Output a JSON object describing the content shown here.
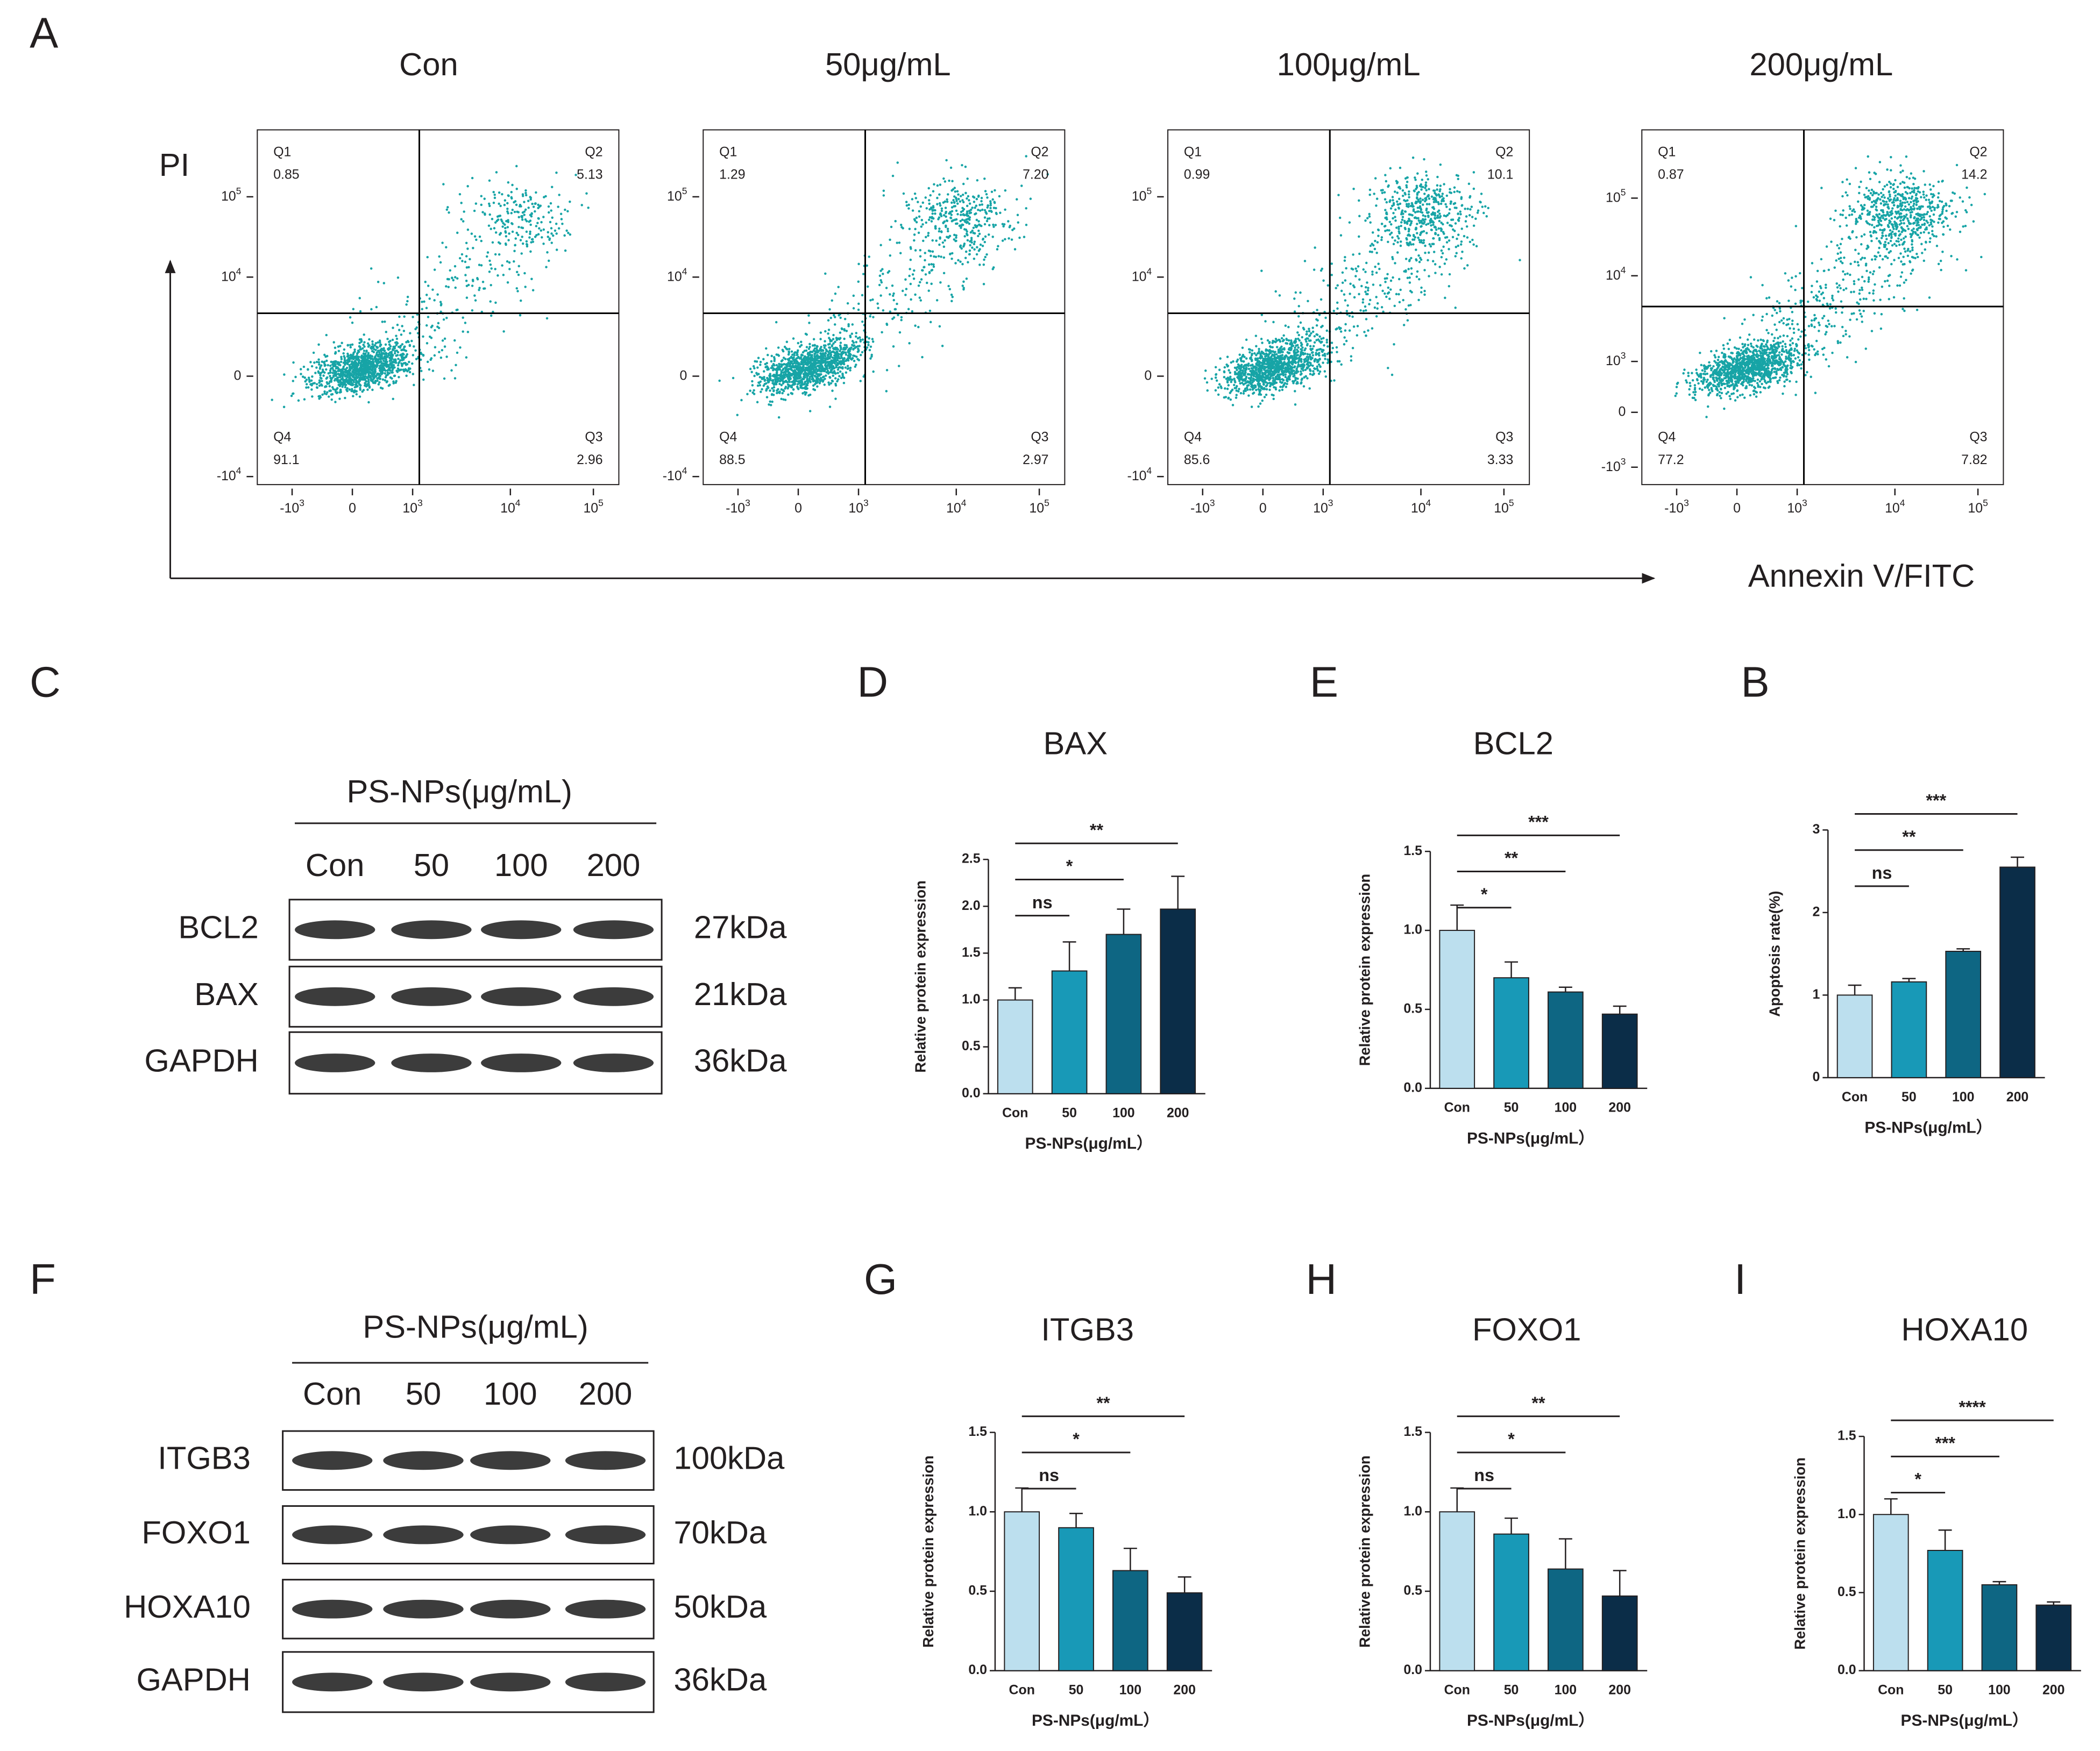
{
  "flow_cytometry": {
    "panel": "A",
    "y_label": "PI",
    "x_label": "Annexin V/FITC",
    "xticks": [
      {
        "text": "-10",
        "sup": "3"
      },
      {
        "text": "0"
      },
      {
        "text": "10",
        "sup": "3"
      },
      {
        "text": "10",
        "sup": "4"
      },
      {
        "text": "10",
        "sup": "5"
      }
    ],
    "plots": [
      {
        "title": "Con",
        "yticks": [
          {
            "text": "10",
            "sup": "5"
          },
          {
            "text": "10",
            "sup": "4"
          },
          {
            "text": "0"
          },
          {
            "text": "-10",
            "sup": "4"
          }
        ],
        "quadrants": [
          {
            "name": "Q1",
            "value": "0.85"
          },
          {
            "name": "Q2",
            "value": "5.13"
          },
          {
            "name": "Q3",
            "value": "2.96"
          },
          {
            "name": "Q4",
            "value": "91.1"
          }
        ]
      },
      {
        "title": "50μg/mL",
        "yticks": [
          {
            "text": "10",
            "sup": "5"
          },
          {
            "text": "10",
            "sup": "4"
          },
          {
            "text": "0"
          },
          {
            "text": "-10",
            "sup": "4"
          }
        ],
        "quadrants": [
          {
            "name": "Q1",
            "value": "1.29"
          },
          {
            "name": "Q2",
            "value": "7.20"
          },
          {
            "name": "Q3",
            "value": "2.97"
          },
          {
            "name": "Q4",
            "value": "88.5"
          }
        ]
      },
      {
        "title": "100μg/mL",
        "yticks": [
          {
            "text": "10",
            "sup": "5"
          },
          {
            "text": "10",
            "sup": "4"
          },
          {
            "text": "0"
          },
          {
            "text": "-10",
            "sup": "4"
          }
        ],
        "quadrants": [
          {
            "name": "Q1",
            "value": "0.99"
          },
          {
            "name": "Q2",
            "value": "10.1"
          },
          {
            "name": "Q3",
            "value": "3.33"
          },
          {
            "name": "Q4",
            "value": "85.6"
          }
        ]
      },
      {
        "title": "200μg/mL",
        "yticks": [
          {
            "text": "10",
            "sup": "5"
          },
          {
            "text": "10",
            "sup": "4"
          },
          {
            "text": "10",
            "sup": "3"
          },
          {
            "text": "0"
          },
          {
            "text": "-10",
            "sup": "3"
          }
        ],
        "quadrants": [
          {
            "name": "Q1",
            "value": "0.87"
          },
          {
            "name": "Q2",
            "value": "14.2"
          },
          {
            "name": "Q3",
            "value": "7.82"
          },
          {
            "name": "Q4",
            "value": "77.2"
          }
        ]
      }
    ]
  },
  "western_blots": [
    {
      "panel": "C",
      "header": "PS-NPs(μg/mL)",
      "lanes": [
        "Con",
        "50",
        "100",
        "200"
      ],
      "rows": [
        {
          "protein": "BCL2",
          "size": "27kDa"
        },
        {
          "protein": "BAX",
          "size": "21kDa"
        },
        {
          "protein": "GAPDH",
          "size": "36kDa"
        }
      ]
    },
    {
      "panel": "F",
      "header": "PS-NPs(μg/mL)",
      "lanes": [
        "Con",
        "50",
        "100",
        "200"
      ],
      "rows": [
        {
          "protein": "ITGB3",
          "size": "100kDa"
        },
        {
          "protein": "FOXO1",
          "size": "70kDa"
        },
        {
          "protein": "HOXA10",
          "size": "50kDa"
        },
        {
          "protein": "GAPDH",
          "size": "36kDa"
        }
      ]
    }
  ],
  "chart_data": [
    {
      "type": "bar",
      "panel": "D",
      "title": "BAX",
      "y_label": "Relative protein expression",
      "x_label": "PS-NPs(μg/mL）",
      "categories": [
        "Con",
        "50",
        "100",
        "200"
      ],
      "values": [
        1.0,
        1.31,
        1.7,
        1.97
      ],
      "errors": [
        0.13,
        0.31,
        0.27,
        0.35
      ],
      "colors": [
        "#bcdfee",
        "#1899b7",
        "#0e6683",
        "#0b2d48"
      ],
      "ylim": [
        0,
        2.5
      ],
      "yticks": [
        {
          "value": 0,
          "label": "0.0"
        },
        {
          "value": 0.5,
          "label": "0.5"
        },
        {
          "value": 1,
          "label": "1.0"
        },
        {
          "value": 1.5,
          "label": "1.5"
        },
        {
          "value": 2,
          "label": "2.0"
        },
        {
          "value": 2.5,
          "label": "2.5"
        }
      ],
      "significance": [
        {
          "between": [
            "Con",
            "50"
          ],
          "label": "ns"
        },
        {
          "between": [
            "Con",
            "100"
          ],
          "label": "*"
        },
        {
          "between": [
            "Con",
            "200"
          ],
          "label": "**"
        }
      ]
    },
    {
      "type": "bar",
      "panel": "E",
      "title": "BCL2",
      "y_label": "Relative protein expression",
      "x_label": "PS-NPs(μg/mL）",
      "categories": [
        "Con",
        "50",
        "100",
        "200"
      ],
      "values": [
        1.0,
        0.7,
        0.61,
        0.47
      ],
      "errors": [
        0.16,
        0.1,
        0.03,
        0.05
      ],
      "colors": [
        "#bcdfee",
        "#1899b7",
        "#0e6683",
        "#0b2d48"
      ],
      "ylim": [
        0,
        1.5
      ],
      "yticks": [
        {
          "value": 0,
          "label": "0.0"
        },
        {
          "value": 0.5,
          "label": "0.5"
        },
        {
          "value": 1,
          "label": "1.0"
        },
        {
          "value": 1.5,
          "label": "1.5"
        }
      ],
      "significance": [
        {
          "between": [
            "Con",
            "50"
          ],
          "label": "*"
        },
        {
          "between": [
            "Con",
            "100"
          ],
          "label": "**"
        },
        {
          "between": [
            "Con",
            "200"
          ],
          "label": "***"
        }
      ]
    },
    {
      "type": "bar",
      "panel": "B",
      "y_label": "Apoptosis rate(%)",
      "x_label": "PS-NPs(μg/mL）",
      "categories": [
        "Con",
        "50",
        "100",
        "200"
      ],
      "values": [
        1.0,
        1.16,
        1.53,
        2.55
      ],
      "errors": [
        0.12,
        0.04,
        0.03,
        0.12
      ],
      "colors": [
        "#bcdfee",
        "#1899b7",
        "#0e6683",
        "#0b2d48"
      ],
      "ylim": [
        0,
        3
      ],
      "yticks": [
        0,
        1,
        2,
        3
      ],
      "significance": [
        {
          "between": [
            "Con",
            "50"
          ],
          "label": "ns"
        },
        {
          "between": [
            "Con",
            "100"
          ],
          "label": "**"
        },
        {
          "between": [
            "Con",
            "200"
          ],
          "label": "***"
        }
      ]
    },
    {
      "type": "bar",
      "panel": "G",
      "title": "ITGB3",
      "y_label": "Relative protein expression",
      "x_label": "PS-NPs(μg/mL）",
      "categories": [
        "Con",
        "50",
        "100",
        "200"
      ],
      "values": [
        1.0,
        0.9,
        0.63,
        0.49
      ],
      "errors": [
        0.15,
        0.09,
        0.14,
        0.1
      ],
      "colors": [
        "#bcdfee",
        "#1899b7",
        "#0e6683",
        "#0b2d48"
      ],
      "ylim": [
        0,
        1.5
      ],
      "yticks": [
        {
          "value": 0,
          "label": "0.0"
        },
        {
          "value": 0.5,
          "label": "0.5"
        },
        {
          "value": 1,
          "label": "1.0"
        },
        {
          "value": 1.5,
          "label": "1.5"
        }
      ],
      "significance": [
        {
          "between": [
            "Con",
            "50"
          ],
          "label": "ns"
        },
        {
          "between": [
            "Con",
            "100"
          ],
          "label": "*"
        },
        {
          "between": [
            "Con",
            "200"
          ],
          "label": "**"
        }
      ]
    },
    {
      "type": "bar",
      "panel": "H",
      "title": "FOXO1",
      "y_label": "Relative protein expression",
      "x_label": "PS-NPs(μg/mL）",
      "categories": [
        "Con",
        "50",
        "100",
        "200"
      ],
      "values": [
        1.0,
        0.86,
        0.64,
        0.47
      ],
      "errors": [
        0.15,
        0.1,
        0.19,
        0.16
      ],
      "colors": [
        "#bcdfee",
        "#1899b7",
        "#0e6683",
        "#0b2d48"
      ],
      "ylim": [
        0,
        1.5
      ],
      "yticks": [
        {
          "value": 0,
          "label": "0.0"
        },
        {
          "value": 0.5,
          "label": "0.5"
        },
        {
          "value": 1,
          "label": "1.0"
        },
        {
          "value": 1.5,
          "label": "1.5"
        }
      ],
      "significance": [
        {
          "between": [
            "Con",
            "50"
          ],
          "label": "ns"
        },
        {
          "between": [
            "Con",
            "100"
          ],
          "label": "*"
        },
        {
          "between": [
            "Con",
            "200"
          ],
          "label": "**"
        }
      ]
    },
    {
      "type": "bar",
      "panel": "I",
      "title": "HOXA10",
      "y_label": "Relative protein expression",
      "x_label": "PS-NPs(μg/mL）",
      "categories": [
        "Con",
        "50",
        "100",
        "200"
      ],
      "values": [
        1.0,
        0.77,
        0.55,
        0.42
      ],
      "errors": [
        0.1,
        0.13,
        0.02,
        0.02
      ],
      "colors": [
        "#bcdfee",
        "#1899b7",
        "#0e6683",
        "#0b2d48"
      ],
      "ylim": [
        0,
        1.5
      ],
      "yticks": [
        {
          "value": 0,
          "label": "0.0"
        },
        {
          "value": 0.5,
          "label": "0.5"
        },
        {
          "value": 1,
          "label": "1.0"
        },
        {
          "value": 1.5,
          "label": "1.5"
        }
      ],
      "significance": [
        {
          "between": [
            "Con",
            "50"
          ],
          "label": "*"
        },
        {
          "between": [
            "Con",
            "100"
          ],
          "label": "***"
        },
        {
          "between": [
            "Con",
            "200"
          ],
          "label": "****"
        }
      ]
    }
  ]
}
